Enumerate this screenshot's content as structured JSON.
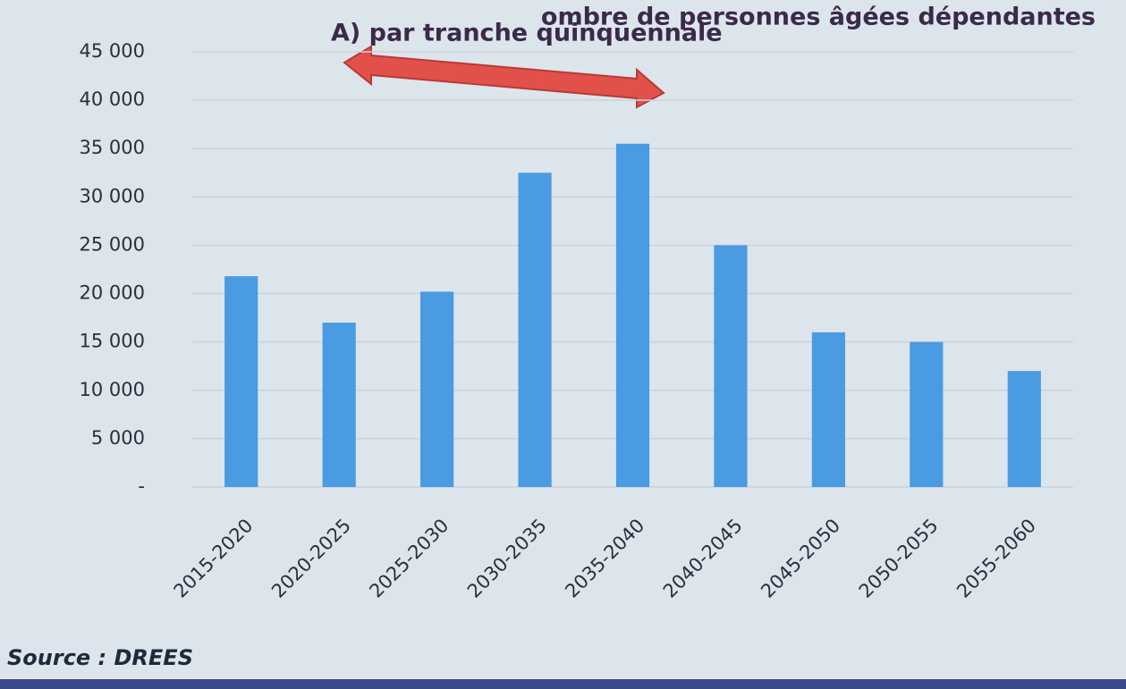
{
  "chart_data": {
    "type": "bar",
    "title": "ombre de personnes âgées dépendantes",
    "subtitle": "A) par tranche quinquennale",
    "source": "Source : DREES",
    "categories": [
      "2015-2020",
      "2020-2025",
      "2025-2030",
      "2030-2035",
      "2035-2040",
      "2040-2045",
      "2045-2050",
      "2050-2055",
      "2055-2060"
    ],
    "values": [
      21800,
      17000,
      20200,
      32500,
      35500,
      25000,
      16000,
      15000,
      12000
    ],
    "color": "#4a9be2",
    "ylim": [
      0,
      45000
    ],
    "yticks": [
      {
        "value": 0,
        "label": "-"
      },
      {
        "value": 5000,
        "label": "5 000"
      },
      {
        "value": 10000,
        "label": "10 000"
      },
      {
        "value": 15000,
        "label": "15 000"
      },
      {
        "value": 20000,
        "label": "20 000"
      },
      {
        "value": 25000,
        "label": "25 000"
      },
      {
        "value": 30000,
        "label": "30 000"
      },
      {
        "value": 35000,
        "label": "35 000"
      },
      {
        "value": 40000,
        "label": "40 000"
      },
      {
        "value": 45000,
        "label": "45 000"
      }
    ],
    "grid": true
  }
}
